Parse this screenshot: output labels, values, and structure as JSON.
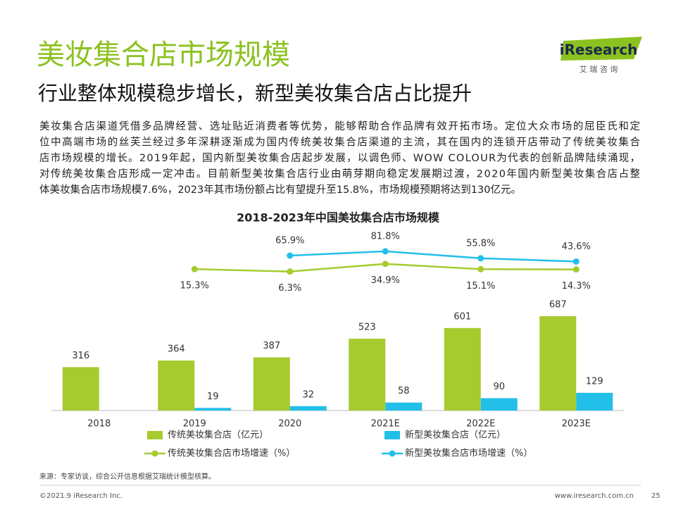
{
  "header": {
    "title": "美妆集合店市场规模",
    "subtitle": "行业整体规模稳步增长，新型美妆集合店占比提升",
    "logo": "iResearch",
    "logo_sub": "艾 瑞 咨 询"
  },
  "paragraph": [
    "美妆集合店渠道凭借多品牌经营、选址贴近消费者等优势，能够帮助合作品牌有效开拓市场。定位大众市场的屈臣氏和定",
    "位中高端市场的丝芙兰经过多年深耕逐渐成为国内传统美妆集合店渠道的主流，其在国内的连锁开店带动了传统美妆集合",
    "店市场规模的增长。2019年起，国内新型美妆集合店起步发展，以调色师、WOW COLOUR为代表的创新品牌陆续涌现，",
    "对传统美妆集合店形成一定冲击。目前新型美妆集合店行业由萌芽期向稳定发展期过渡，2020年国内新型美妆集合店占整",
    "体美妆集合店市场规模7.6%，2023年其市场份额占比有望提升至15.8%，市场规模预期将达到130亿元。"
  ],
  "chart_data": {
    "type": "bar",
    "title": "2018-2023年中国美妆集合店市场规模",
    "categories": [
      "2018",
      "2019",
      "2020",
      "2021E",
      "2022E",
      "2023E"
    ],
    "ylim": [
      0,
      1000
    ],
    "y2lim": [
      0,
      100
    ],
    "series": [
      {
        "name": "传统美妆集合店（亿元）",
        "type": "bar",
        "color": "#a6cb2f",
        "values": [
          316,
          364,
          387,
          523,
          601,
          687
        ]
      },
      {
        "name": "新型美妆集合店（亿元）",
        "type": "bar",
        "color": "#22bfe9",
        "values": [
          null,
          19,
          32,
          58,
          90,
          129
        ]
      },
      {
        "name": "传统美妆集合店市场增速（%）",
        "type": "line",
        "axis": "y2",
        "color": "#a6cb2f",
        "values": [
          null,
          15.3,
          6.3,
          34.9,
          15.1,
          14.3
        ],
        "value_labels": [
          null,
          "15.3%",
          "6.3%",
          "34.9%",
          "15.1%",
          "14.3%"
        ]
      },
      {
        "name": "新型美妆集合店市场增速（%）",
        "type": "line",
        "axis": "y2",
        "color": "#22bfe9",
        "values": [
          null,
          null,
          65.9,
          81.8,
          55.8,
          43.6
        ],
        "value_labels": [
          null,
          null,
          "65.9%",
          "81.8%",
          "55.8%",
          "43.6%"
        ]
      }
    ]
  },
  "footer": {
    "source": "来源：专家访谈，综合公开信息根据艾瑞统计模型核算。",
    "copyright": "©2021.9 iResearch Inc.",
    "url": "www.iresearch.com.cn",
    "page": "25"
  }
}
